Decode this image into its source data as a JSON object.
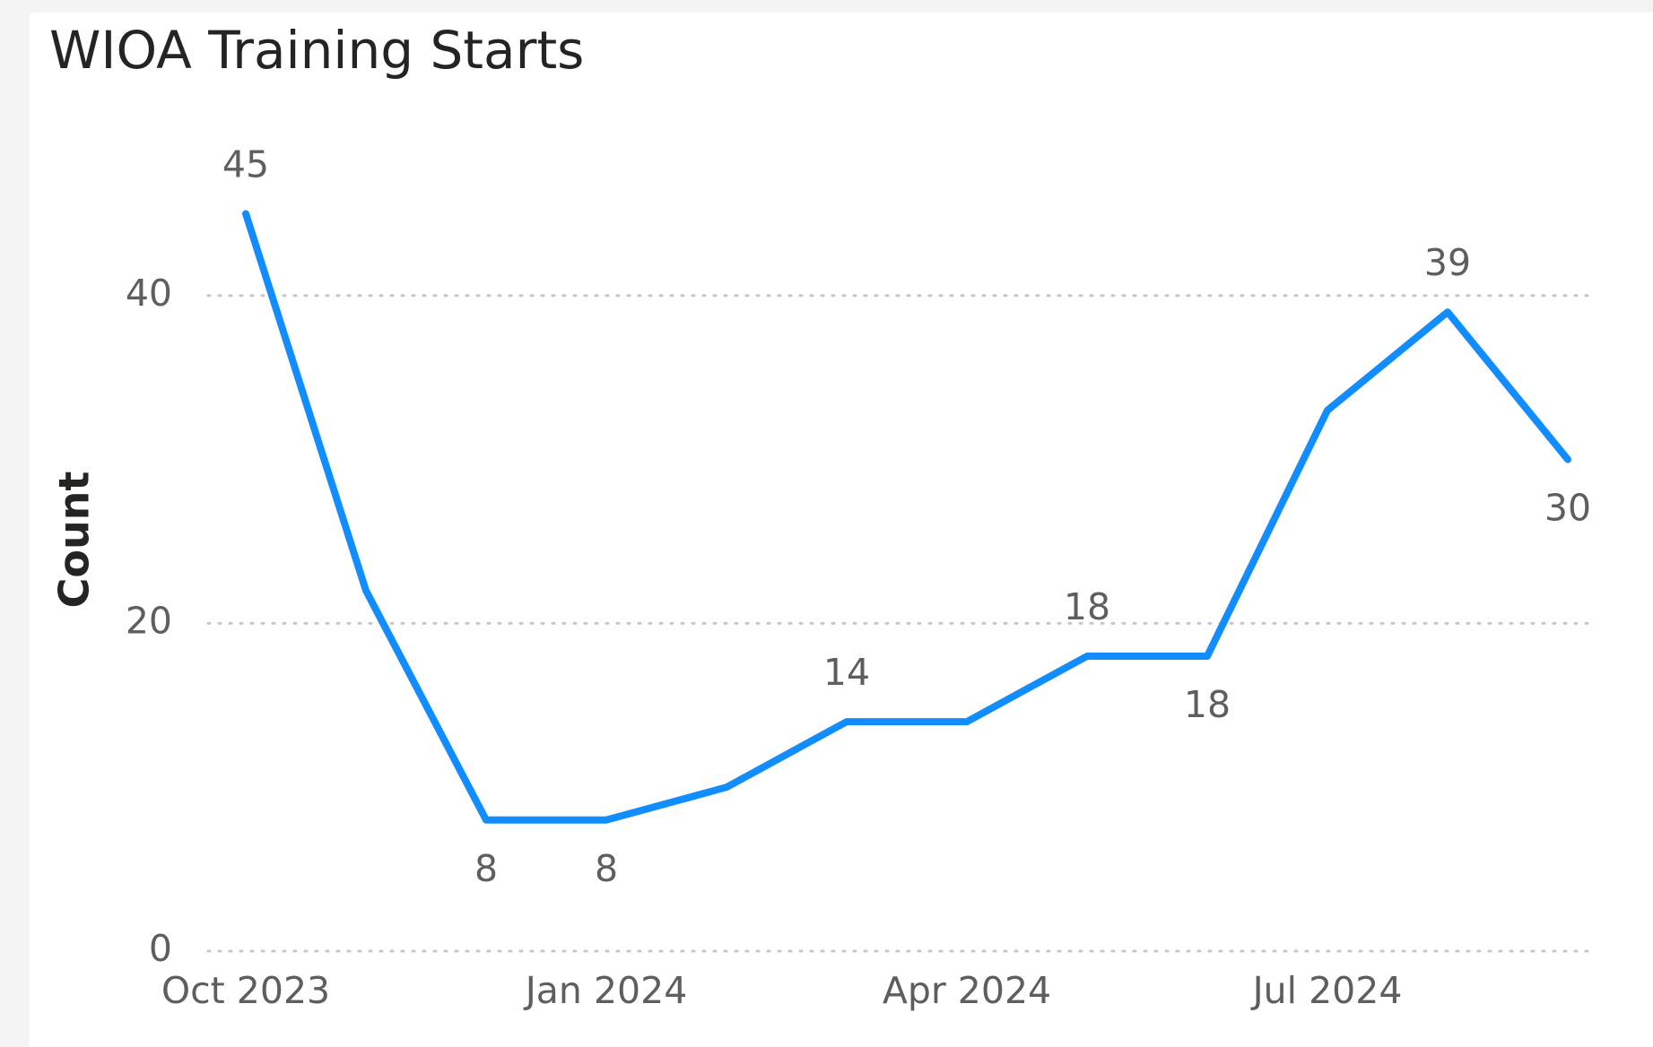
{
  "chart_data": {
    "type": "line",
    "title": "WIOA Training Starts",
    "y_label": "Count",
    "categories": [
      "Oct 2023",
      null,
      null,
      "Jan 2024",
      null,
      null,
      "Apr 2024",
      null,
      null,
      "Jul 2024",
      null,
      null
    ],
    "series": [
      {
        "name": "Count",
        "color": "#118DFF",
        "values": [
          45,
          22,
          8,
          8,
          10,
          14,
          14,
          18,
          18,
          33,
          39,
          30
        ],
        "value_labels": [
          "45",
          null,
          "8",
          "8",
          null,
          "14",
          null,
          "18",
          "18",
          null,
          "39",
          "30"
        ]
      }
    ],
    "ylim": [
      0,
      50
    ],
    "yticks": [
      0,
      20,
      40
    ],
    "grid": true
  }
}
